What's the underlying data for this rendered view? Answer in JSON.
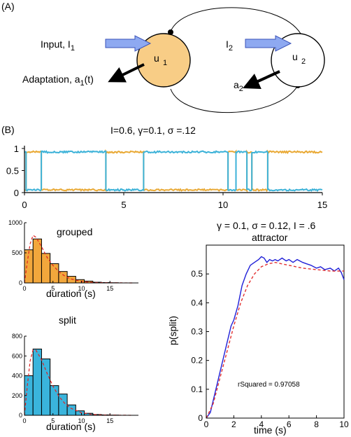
{
  "panel_a": {
    "label": "(A)",
    "input_label": "Input, I",
    "input_sub": "1",
    "adaptation_label": "Adaptation, a",
    "adaptation_sub": "1",
    "adaptation_suffix": "(t)",
    "u1_label": "u",
    "u1_sub": "1",
    "i2_label": "I",
    "i2_sub": "2",
    "u2_label": "u",
    "u2_sub": "2",
    "a2_label": "a",
    "a2_sub": "2",
    "colors": {
      "u1_fill": "#f8cd86",
      "arrow_fill": "#8ea9f1",
      "arrow_stroke": "#3a52b8"
    }
  },
  "panel_b_label": "(B)",
  "chart_data": [
    {
      "type": "line",
      "title": "I=0.6,  γ=0.1,   σ =.12",
      "xlim": [
        0,
        15
      ],
      "ylim": [
        0,
        1
      ],
      "xticks": [
        "0",
        "5",
        "10",
        "15"
      ],
      "yticks": [
        "0",
        "0.5",
        "1"
      ],
      "series": [
        {
          "color": "#e9a935",
          "segments": [
            [
              0,
              0
            ],
            [
              0.08,
              1
            ],
            [
              0.85,
              0
            ],
            [
              4.1,
              1
            ],
            [
              6.0,
              0
            ],
            [
              10.25,
              1
            ],
            [
              10.65,
              0
            ],
            [
              11.2,
              1
            ],
            [
              11.45,
              0
            ],
            [
              12.25,
              1
            ],
            [
              15,
              1
            ]
          ]
        },
        {
          "color": "#3cb2d8",
          "segments": [
            [
              0,
              1
            ],
            [
              0.08,
              0
            ],
            [
              0.85,
              1
            ],
            [
              4.1,
              0
            ],
            [
              6.0,
              1
            ],
            [
              10.25,
              0
            ],
            [
              10.65,
              1
            ],
            [
              11.2,
              0
            ],
            [
              11.45,
              1
            ],
            [
              12.25,
              0
            ],
            [
              15,
              0
            ]
          ]
        }
      ]
    },
    {
      "type": "bar",
      "title": "grouped",
      "xlabel": "duration (s)",
      "color": "#f2a73c",
      "bin_width": 1.5,
      "x_start": 0,
      "values": [
        550,
        730,
        490,
        320,
        190,
        110,
        55,
        30,
        12,
        6,
        3,
        0,
        0
      ],
      "xlim": [
        0,
        20
      ],
      "ylim": [
        0,
        1000
      ],
      "xticks": [
        "0",
        "5",
        "10",
        "15"
      ],
      "yticks": [
        "0",
        "500",
        "1000"
      ],
      "fit_curve": [
        [
          0,
          0
        ],
        [
          0.5,
          350
        ],
        [
          1,
          650
        ],
        [
          1.5,
          790
        ],
        [
          2,
          760
        ],
        [
          3,
          600
        ],
        [
          4,
          420
        ],
        [
          5,
          290
        ],
        [
          6,
          190
        ],
        [
          7,
          120
        ],
        [
          8,
          70
        ],
        [
          10,
          25
        ],
        [
          12,
          8
        ],
        [
          14,
          3
        ],
        [
          19,
          0
        ]
      ]
    },
    {
      "type": "bar",
      "title": "split",
      "xlabel": "duration (s)",
      "color": "#3ab4dc",
      "bin_width": 1.5,
      "x_start": 0,
      "values": [
        400,
        670,
        570,
        300,
        215,
        105,
        45,
        20,
        8,
        4,
        2,
        0,
        0
      ],
      "xlim": [
        0,
        20
      ],
      "ylim": [
        0,
        800
      ],
      "xticks": [
        "0",
        "5",
        "10",
        "15"
      ],
      "yticks": [
        "0",
        "200",
        "400",
        "600",
        "800"
      ],
      "fit_curve": [
        [
          0,
          0
        ],
        [
          0.5,
          300
        ],
        [
          1,
          550
        ],
        [
          1.5,
          660
        ],
        [
          2,
          660
        ],
        [
          3,
          560
        ],
        [
          4,
          420
        ],
        [
          5,
          295
        ],
        [
          6,
          195
        ],
        [
          7,
          125
        ],
        [
          8,
          75
        ],
        [
          10,
          25
        ],
        [
          12,
          8
        ],
        [
          14,
          3
        ],
        [
          19,
          0
        ]
      ]
    },
    {
      "type": "line",
      "title": "γ = 0.1, σ = 0.12, I = .6",
      "subtitle": "attractor",
      "xlabel": "time (s)",
      "ylabel": "p(split)",
      "annotation": "rSquared = 0.97058",
      "xlim": [
        0,
        10
      ],
      "ylim": [
        0,
        0.6
      ],
      "xticks": [
        "0",
        "2",
        "4",
        "6",
        "8",
        "10"
      ],
      "yticks": [
        "0",
        "0.1",
        "0.2",
        "0.3",
        "0.4",
        "0.5"
      ],
      "series": [
        {
          "color": "#2020d8",
          "style": "solid",
          "points": [
            [
              0,
              0
            ],
            [
              0.3,
              0.02
            ],
            [
              0.6,
              0.08
            ],
            [
              1.0,
              0.16
            ],
            [
              1.4,
              0.24
            ],
            [
              1.8,
              0.32
            ],
            [
              2.0,
              0.34
            ],
            [
              2.3,
              0.39
            ],
            [
              2.6,
              0.46
            ],
            [
              2.9,
              0.5
            ],
            [
              3.2,
              0.53
            ],
            [
              3.5,
              0.54
            ],
            [
              3.8,
              0.55
            ],
            [
              4.0,
              0.56
            ],
            [
              4.2,
              0.555
            ],
            [
              4.4,
              0.54
            ],
            [
              4.6,
              0.55
            ],
            [
              4.8,
              0.545
            ],
            [
              5.0,
              0.55
            ],
            [
              5.2,
              0.545
            ],
            [
              5.5,
              0.555
            ],
            [
              5.8,
              0.545
            ],
            [
              6.0,
              0.55
            ],
            [
              6.3,
              0.54
            ],
            [
              6.6,
              0.55
            ],
            [
              7.0,
              0.54
            ],
            [
              7.3,
              0.535
            ],
            [
              7.6,
              0.53
            ],
            [
              8.0,
              0.52
            ],
            [
              8.3,
              0.525
            ],
            [
              8.6,
              0.515
            ],
            [
              9.0,
              0.52
            ],
            [
              9.3,
              0.51
            ],
            [
              9.6,
              0.52
            ],
            [
              9.8,
              0.505
            ],
            [
              10.0,
              0.48
            ]
          ]
        },
        {
          "color": "#e23030",
          "style": "dashed",
          "points": [
            [
              0,
              0
            ],
            [
              0.5,
              0.05
            ],
            [
              1.0,
              0.14
            ],
            [
              1.5,
              0.23
            ],
            [
              2.0,
              0.32
            ],
            [
              2.5,
              0.4
            ],
            [
              3.0,
              0.46
            ],
            [
              3.5,
              0.5
            ],
            [
              4.0,
              0.525
            ],
            [
              4.5,
              0.535
            ],
            [
              5.0,
              0.54
            ],
            [
              5.5,
              0.535
            ],
            [
              6.0,
              0.53
            ],
            [
              7.0,
              0.52
            ],
            [
              8.0,
              0.515
            ],
            [
              9.0,
              0.51
            ],
            [
              10.0,
              0.51
            ]
          ]
        }
      ]
    }
  ]
}
